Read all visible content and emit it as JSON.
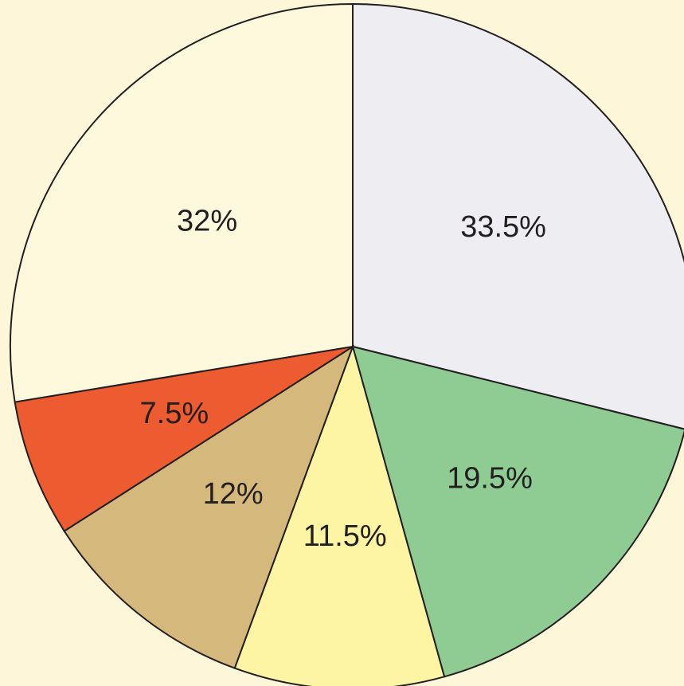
{
  "chart_data": {
    "type": "pie",
    "values": [
      33.5,
      19.5,
      11.5,
      12,
      7.5,
      32
    ],
    "value_labels": [
      "33.5%",
      "19.5%",
      "11.5%",
      "12%",
      "7.5%",
      "32%"
    ],
    "colors": [
      "#eeeef2",
      "#8fcc94",
      "#fdf5a3",
      "#d5b87c",
      "#ed5b30",
      "#fef9dc"
    ]
  }
}
